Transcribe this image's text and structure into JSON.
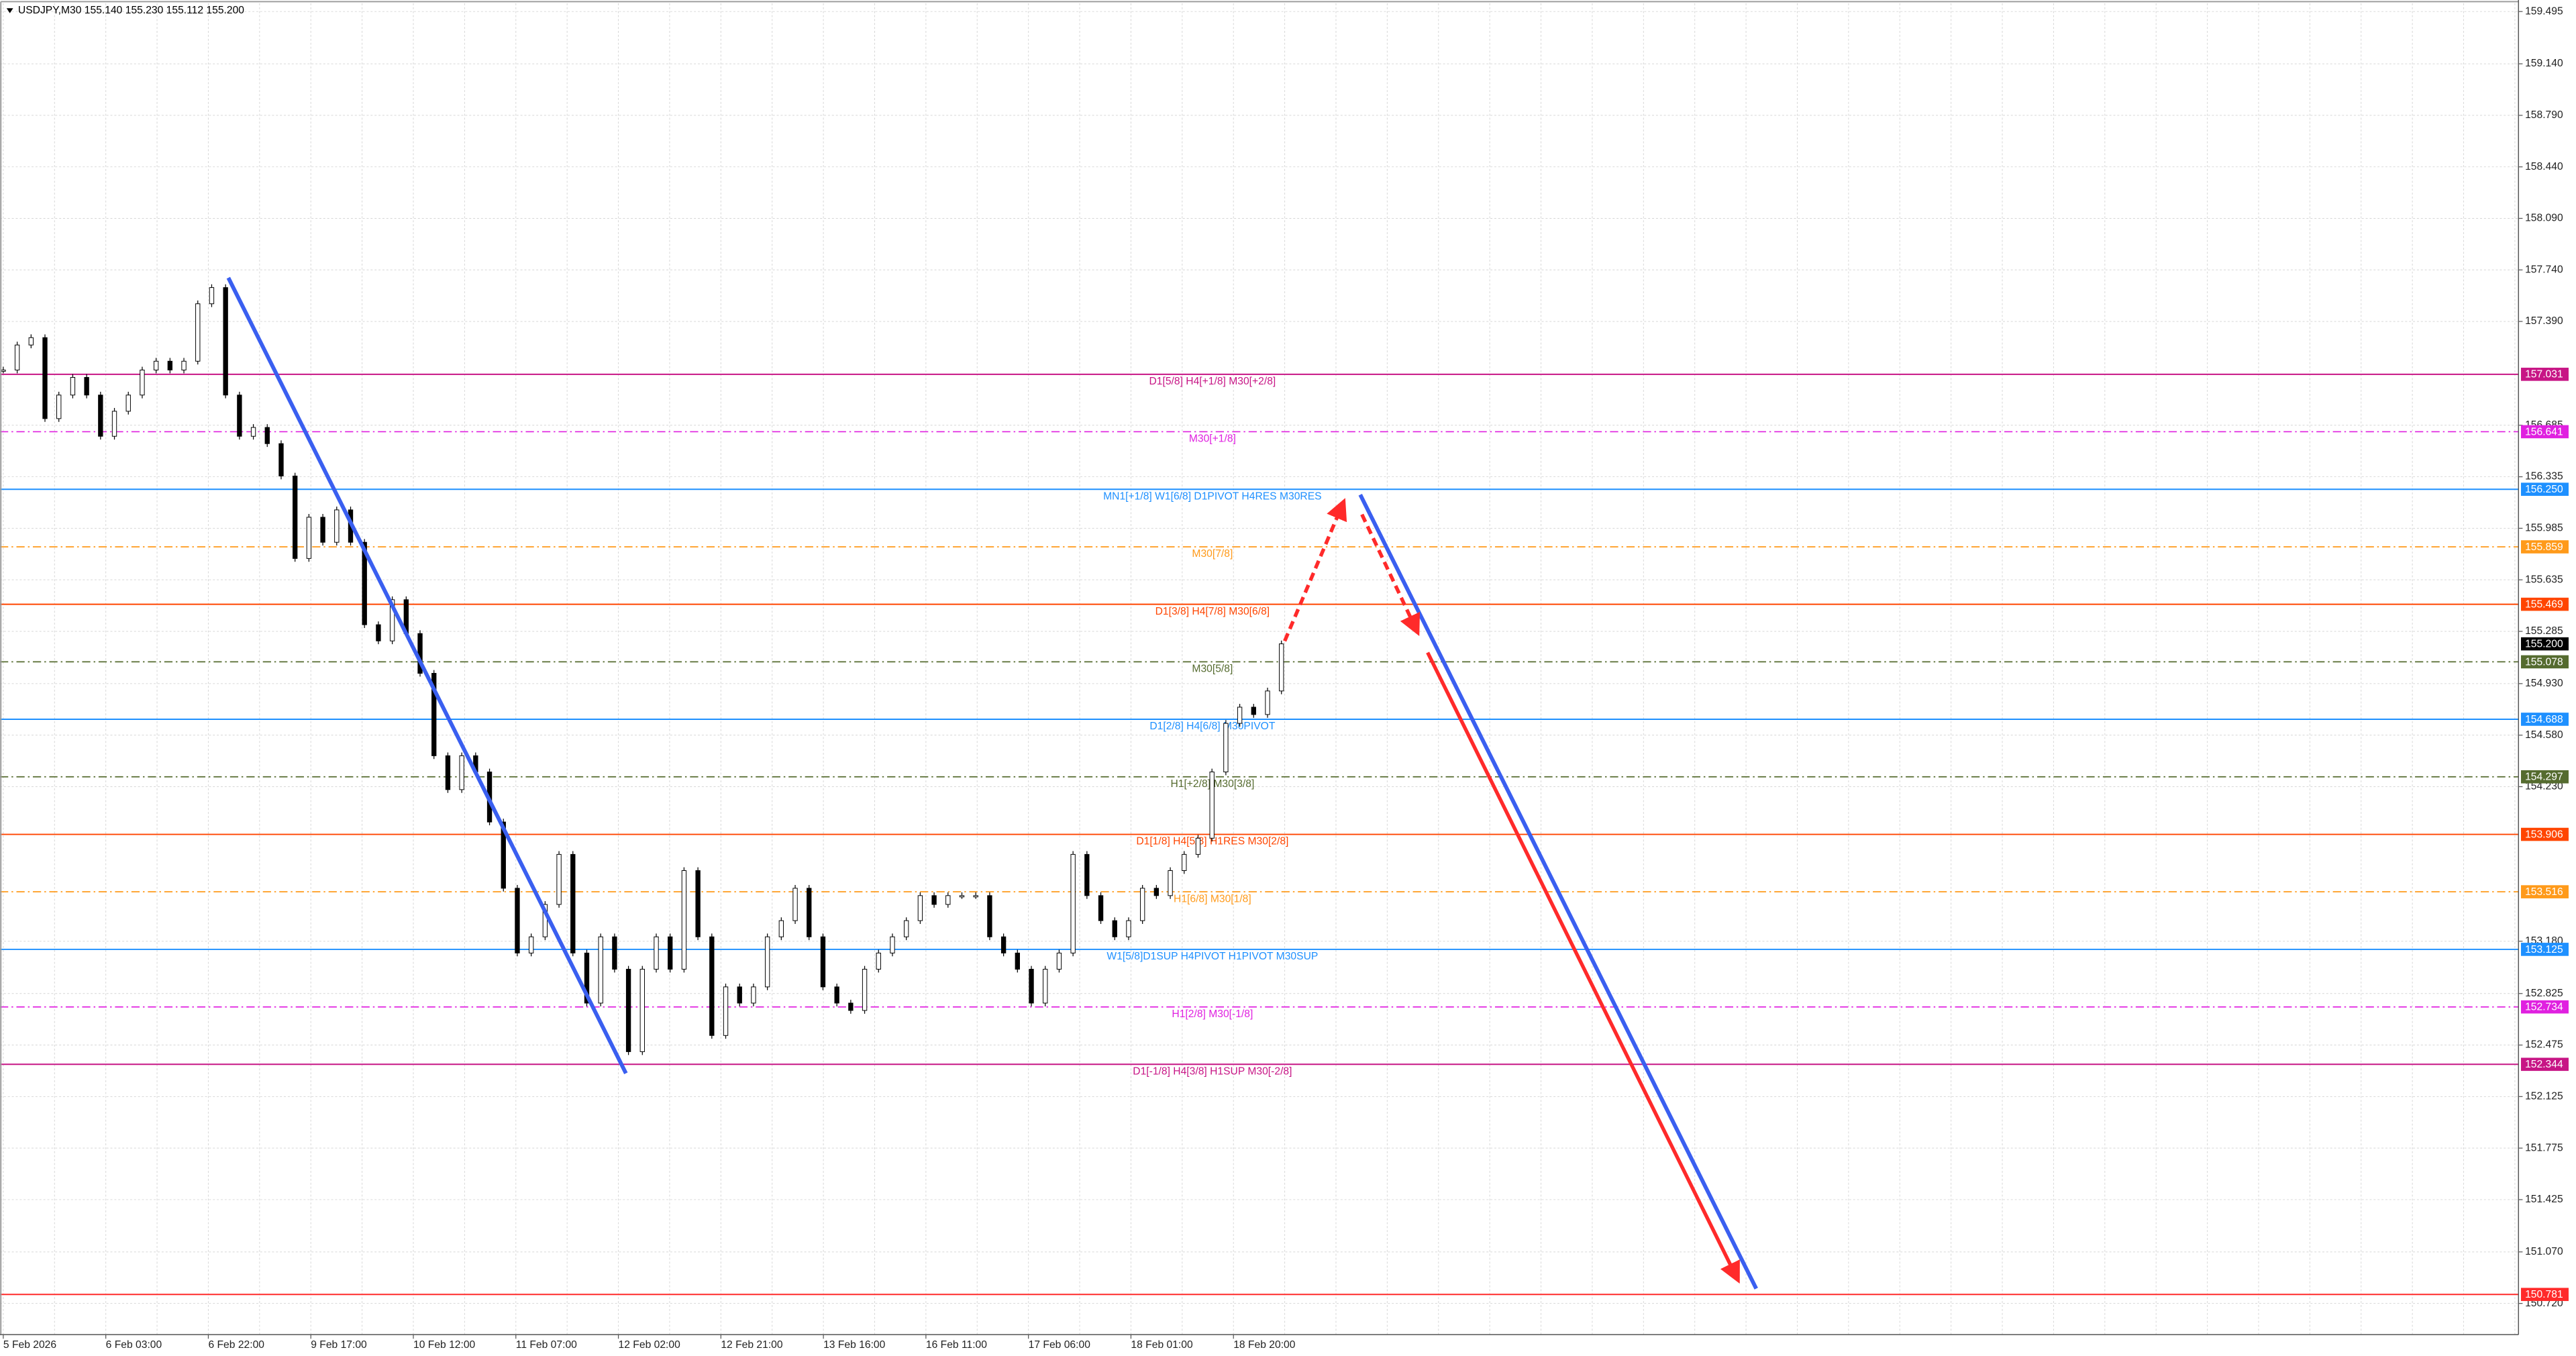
{
  "chart_data": {
    "type": "candlestick",
    "title": "USDJPY,M30  155.140 155.230 155.112 155.200",
    "categories": [
      "5 Feb 2026",
      "6 Feb 03:00",
      "6 Feb 22:00",
      "9 Feb 17:00",
      "10 Feb 12:00",
      "11 Feb 07:00",
      "12 Feb 02:00",
      "12 Feb 21:00",
      "13 Feb 16:00",
      "16 Feb 11:00",
      "17 Feb 06:00",
      "18 Feb 01:00",
      "18 Feb 20:00"
    ],
    "closes": [
      157.06,
      157.23,
      157.28,
      156.73,
      156.89,
      157.01,
      156.89,
      156.61,
      156.78,
      156.89,
      157.06,
      157.12,
      157.06,
      157.12,
      157.51,
      157.62,
      156.89,
      156.61,
      156.67,
      156.56,
      156.34,
      155.78,
      156.06,
      155.89,
      156.11,
      155.89,
      155.33,
      155.22,
      155.5,
      155.27,
      155.0,
      154.44,
      154.21,
      154.44,
      154.33,
      153.99,
      153.54,
      153.1,
      153.21,
      153.43,
      153.77,
      153.1,
      152.76,
      153.21,
      152.99,
      152.43,
      152.99,
      153.21,
      152.99,
      153.66,
      153.21,
      152.54,
      152.87,
      152.76,
      152.87,
      153.21,
      153.32,
      153.54,
      153.21,
      152.87,
      152.76,
      152.71,
      152.99,
      153.1,
      153.21,
      153.32,
      153.49,
      153.43,
      153.49,
      153.49,
      153.49,
      153.21,
      153.1,
      152.99,
      152.76,
      152.99,
      153.1,
      153.77,
      153.49,
      153.32,
      153.21,
      153.32,
      153.54,
      153.49,
      153.66,
      153.77,
      153.88,
      154.33,
      154.66,
      154.77,
      154.72,
      154.88,
      155.2
    ],
    "ylim": [
      150.508,
      159.551
    ],
    "yticks": [
      159.495,
      {
        "value": 159.14,
        "label": "159.140"
      },
      {
        "value": 158.79,
        "label": "158.790"
      },
      {
        "value": 158.44,
        "label": "158.440"
      },
      {
        "value": 158.09,
        "label": "158.090"
      },
      {
        "value": 157.74,
        "label": "157.740"
      },
      {
        "value": 157.39,
        "label": "157.390"
      },
      156.685,
      156.335,
      155.985,
      155.635,
      155.285,
      {
        "value": 154.93,
        "label": "154.930"
      },
      {
        "value": 154.58,
        "label": "154.580"
      },
      {
        "value": 154.23,
        "label": "154.230"
      },
      {
        "value": 153.18,
        "label": "153.180"
      },
      152.825,
      152.475,
      152.125,
      151.775,
      151.425,
      {
        "value": 151.07,
        "label": "151.070"
      },
      {
        "value": 150.72,
        "label": "150.720"
      }
    ],
    "grid": true,
    "levels": [
      {
        "name": "D1[5/8] H4[+1/8] M30[+2/8]",
        "value": 157.031,
        "color": "#c71585",
        "dash": false
      },
      {
        "name": "M30[+1/8]",
        "value": 156.641,
        "color": "#e020e0",
        "dash": true
      },
      {
        "name": "MN1[+1/8] W1[6/8] D1PIVOT H4RES M30RES",
        "value": 156.25,
        "value_label": "156.250",
        "color": "#1e90ff",
        "dash": false
      },
      {
        "name": "M30[7/8]",
        "value": 155.859,
        "color": "#ff9a1a",
        "dash": true
      },
      {
        "name": "D1[3/8] H4[7/8] M30[6/8]",
        "value": 155.469,
        "color": "#ff4500",
        "dash": false
      },
      {
        "value": 155.2,
        "value_label": "155.200",
        "color": "#000000",
        "dash": false
      },
      {
        "name": "M30[5/8]",
        "value": 155.078,
        "color": "#556b2f",
        "dash": true
      },
      {
        "name": "D1[2/8] H4[6/8] M30PIVOT",
        "value": 154.688,
        "color": "#1e90ff",
        "dash": false
      },
      {
        "name": "H1[+2/8] M30[3/8]",
        "value": 154.297,
        "color": "#556b2f",
        "dash": true
      },
      {
        "name": "D1[1/8] H4[5/8] H1RES M30[2/8]",
        "value": 153.906,
        "color": "#ff4500",
        "dash": false
      },
      {
        "name": "H1[6/8] M30[1/8]",
        "value": 153.516,
        "color": "#ff9a1a",
        "dash": true
      },
      {
        "name": "W1[5/8]D1SUP H4PIVOT H1PIVOT M30SUP",
        "value": 153.125,
        "color": "#1e90ff",
        "dash": false
      },
      {
        "name": "H1[2/8] M30[-1/8]",
        "value": 152.734,
        "color": "#e020e0",
        "dash": true
      },
      {
        "name": "D1[-1/8] H4[3/8] H1SUP M30[-2/8]",
        "value": 152.344,
        "color": "#c71585",
        "dash": false
      },
      {
        "value": 150.781,
        "color": "#ff2a2a",
        "dash": false
      }
    ]
  }
}
